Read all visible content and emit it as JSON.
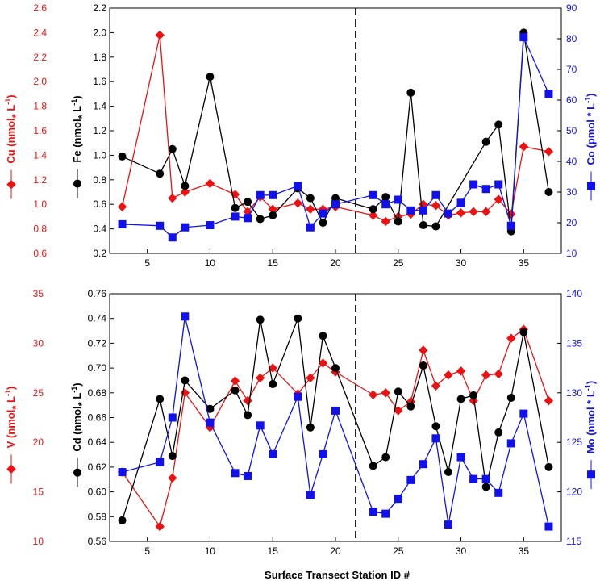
{
  "chart_data": [
    {
      "type": "line",
      "panel": "top",
      "x_ticks": [
        5,
        10,
        15,
        20,
        25,
        30,
        35
      ],
      "xlim": [
        2,
        38
      ],
      "divider_x": 21.6,
      "axes": {
        "cu": {
          "label": "Cu (nmol * L-1)",
          "label_main": "Cu (nmol",
          "label_mid": " L",
          "label_sup": "-1",
          "label_end": ")",
          "ylim": [
            0.6,
            2.6
          ],
          "ticks": [
            "0.6",
            "0.8",
            "1.0",
            "1.2",
            "1.4",
            "1.6",
            "1.8",
            "2.0",
            "2.2",
            "2.4",
            "2.6"
          ],
          "color": "#ee1111"
        },
        "fe": {
          "label": "Fe (nmol * L-1)",
          "label_main": "Fe (nmol",
          "label_mid": " L",
          "label_sup": "-1",
          "label_end": ")",
          "ylim": [
            0.2,
            2.2
          ],
          "ticks": [
            "0.2",
            "0.4",
            "0.6",
            "0.8",
            "1.0",
            "1.2",
            "1.4",
            "1.6",
            "1.8",
            "2.0",
            "2.2"
          ],
          "color": "#000000"
        },
        "co": {
          "label": "Co (pmol * L-1)",
          "label_main": "Co (pmol * L",
          "label_sup": "-1",
          "label_end": ")",
          "ylim": [
            10,
            90
          ],
          "ticks": [
            "10",
            "20",
            "30",
            "40",
            "50",
            "60",
            "70",
            "80",
            "90"
          ],
          "color": "#1111ee"
        }
      },
      "series": [
        {
          "name": "Cu",
          "axis": "cu",
          "marker": "diamond",
          "color": "#ee1111",
          "x": [
            3,
            6,
            7,
            8,
            10,
            12,
            13,
            14,
            15,
            17,
            18,
            19,
            20,
            23,
            24,
            25,
            26,
            27,
            28,
            29,
            30,
            31,
            32,
            33,
            34,
            35,
            37
          ],
          "y": [
            0.98,
            2.38,
            1.05,
            1.1,
            1.17,
            1.08,
            0.94,
            1.06,
            0.96,
            1.01,
            0.96,
            0.96,
            0.98,
            0.91,
            0.86,
            0.9,
            0.92,
            1.0,
            0.99,
            0.91,
            0.93,
            0.94,
            0.94,
            1.04,
            0.92,
            1.47,
            1.43
          ]
        },
        {
          "name": "Fe",
          "axis": "fe",
          "marker": "circle",
          "color": "#000000",
          "x": [
            3,
            6,
            7,
            8,
            10,
            12,
            13,
            14,
            15,
            17,
            18,
            19,
            20,
            23,
            24,
            25,
            26,
            27,
            28,
            32,
            33,
            34,
            35,
            37
          ],
          "y": [
            0.99,
            0.85,
            1.05,
            0.75,
            1.64,
            0.57,
            0.62,
            0.48,
            0.51,
            0.73,
            0.65,
            0.45,
            0.65,
            0.56,
            0.66,
            0.46,
            1.51,
            0.43,
            0.42,
            1.11,
            1.25,
            0.38,
            2.0,
            0.7
          ]
        },
        {
          "name": "Co",
          "axis": "co",
          "marker": "square",
          "color": "#1111ee",
          "x": [
            3,
            6,
            7,
            8,
            10,
            12,
            13,
            14,
            15,
            17,
            18,
            19,
            20,
            23,
            24,
            25,
            26,
            27,
            28,
            29,
            30,
            31,
            32,
            33,
            34,
            35,
            37
          ],
          "y": [
            19.5,
            19.0,
            15.2,
            18.5,
            19.2,
            22.0,
            21.5,
            29.0,
            29.0,
            32.0,
            18.5,
            23.0,
            26.0,
            29.0,
            26.0,
            27.5,
            24.0,
            24.0,
            29.0,
            23.0,
            26.5,
            32.5,
            31.0,
            32.5,
            19.0,
            80.5,
            62.0
          ]
        }
      ]
    },
    {
      "type": "line",
      "panel": "bottom",
      "x_ticks": [
        5,
        10,
        15,
        20,
        25,
        30,
        35
      ],
      "xlim": [
        2,
        38
      ],
      "divider_x": 21.6,
      "xlabel": "Surface Transect Station ID #",
      "axes": {
        "v": {
          "label": "V (nmol * L-1)",
          "label_main": "V (nmol",
          "label_mid": " L",
          "label_sup": "-1",
          "label_end": ")",
          "ylim": [
            10,
            35
          ],
          "ticks": [
            "10",
            "15",
            "20",
            "25",
            "30",
            "35"
          ],
          "color": "#ee1111"
        },
        "cd": {
          "label": "Cd (nmol * L-1)",
          "label_main": "Cd (nmol",
          "label_mid": " L",
          "label_sup": "-1",
          "label_end": ")",
          "ylim": [
            0.56,
            0.76
          ],
          "ticks": [
            "0.56",
            "0.58",
            "0.60",
            "0.62",
            "0.64",
            "0.66",
            "0.68",
            "0.70",
            "0.72",
            "0.74",
            "0.76"
          ],
          "color": "#000000"
        },
        "mo": {
          "label": "Mo (nmol * L-1)",
          "label_main": "Mo (nmol * L",
          "label_sup": "-1",
          "label_end": ")",
          "ylim": [
            115,
            140
          ],
          "ticks": [
            "115",
            "120",
            "125",
            "130",
            "135",
            "140"
          ],
          "color": "#1111ee"
        }
      },
      "series": [
        {
          "name": "V",
          "axis": "v",
          "marker": "diamond",
          "color": "#ee1111",
          "x": [
            3,
            6,
            7,
            8,
            10,
            12,
            13,
            14,
            15,
            17,
            18,
            19,
            20,
            23,
            24,
            25,
            26,
            27,
            28,
            29,
            30,
            31,
            32,
            33,
            34,
            35,
            37
          ],
          "y": [
            17.0,
            11.5,
            16.4,
            25.0,
            21.5,
            26.2,
            24.2,
            26.5,
            27.5,
            24.9,
            26.5,
            28.0,
            27.1,
            24.8,
            25.0,
            23.2,
            24.1,
            29.3,
            25.7,
            26.8,
            27.2,
            24.2,
            26.8,
            26.9,
            30.5,
            31.4,
            24.2
          ]
        },
        {
          "name": "Cd",
          "axis": "cd",
          "marker": "circle",
          "color": "#000000",
          "x": [
            3,
            6,
            7,
            8,
            10,
            12,
            13,
            14,
            15,
            17,
            18,
            19,
            20,
            23,
            24,
            25,
            26,
            27,
            28,
            29,
            30,
            31,
            32,
            33,
            34,
            35,
            37
          ],
          "y": [
            0.577,
            0.675,
            0.629,
            0.69,
            0.667,
            0.682,
            0.662,
            0.739,
            0.687,
            0.74,
            0.652,
            0.726,
            0.7,
            0.621,
            0.628,
            0.681,
            0.669,
            0.702,
            0.653,
            0.616,
            0.675,
            0.678,
            0.604,
            0.648,
            0.676,
            0.729,
            0.62
          ]
        },
        {
          "name": "Mo",
          "axis": "mo",
          "marker": "square",
          "color": "#1111ee",
          "x": [
            3,
            6,
            7,
            8,
            10,
            12,
            13,
            14,
            15,
            17,
            18,
            19,
            20,
            23,
            24,
            25,
            26,
            27,
            28,
            29,
            30,
            31,
            32,
            33,
            34,
            35,
            37
          ],
          "y": [
            122.0,
            123.0,
            127.5,
            137.7,
            127.0,
            121.9,
            121.6,
            126.7,
            123.8,
            129.6,
            119.7,
            123.8,
            128.2,
            118.0,
            117.8,
            119.3,
            121.2,
            122.8,
            125.4,
            116.7,
            123.5,
            121.3,
            121.3,
            119.9,
            124.9,
            127.9,
            116.5
          ]
        }
      ]
    }
  ]
}
